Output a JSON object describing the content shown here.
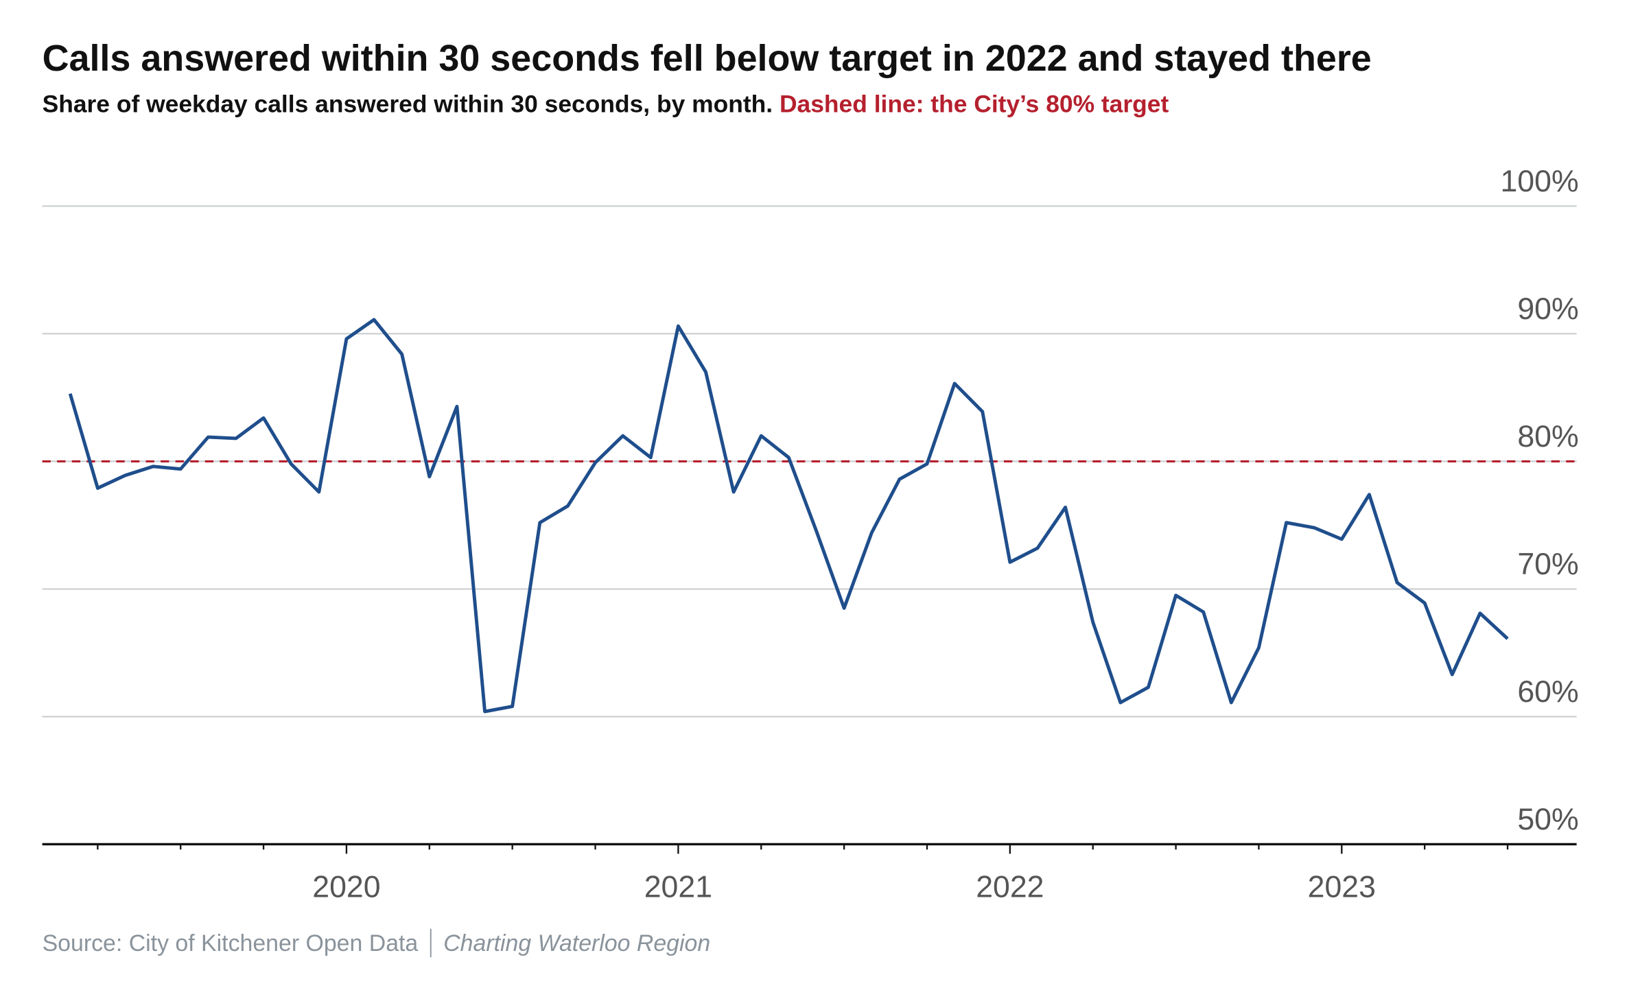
{
  "chart_data": {
    "type": "line",
    "title": "Calls answered within 30 seconds fell below target in 2022 and stayed there",
    "subtitle": "Share of weekday calls answered within 30 seconds, by month.",
    "subtitle_note": "Dashed line: the City’s 80% target",
    "source": "Source: City of Kitchener Open Data",
    "credit": "Charting Waterloo Region",
    "target": 80,
    "target_color": "#b5202e",
    "x": [
      2019.167,
      2019.25,
      2019.333,
      2019.417,
      2019.5,
      2019.583,
      2019.667,
      2019.75,
      2019.833,
      2019.917,
      2020,
      2020.083,
      2020.167,
      2020.25,
      2020.333,
      2020.417,
      2020.5,
      2020.583,
      2020.667,
      2020.75,
      2020.833,
      2020.917,
      2021,
      2021.083,
      2021.167,
      2021.25,
      2021.333,
      2021.417,
      2021.5,
      2021.583,
      2021.667,
      2021.75,
      2021.833,
      2021.917,
      2022,
      2022.083,
      2022.167,
      2022.25,
      2022.333,
      2022.417,
      2022.5,
      2022.583,
      2022.667,
      2022.75,
      2022.833,
      2022.917,
      2023,
      2023.083,
      2023.167,
      2023.25,
      2023.333,
      2023.417,
      2023.5
    ],
    "series": [
      {
        "color": "#1f4e8c",
        "values": [
          85.3,
          77.9,
          78.9,
          79.6,
          79.4,
          81.9,
          81.8,
          83.4,
          79.8,
          77.6,
          89.6,
          91.1,
          88.4,
          78.8,
          84.3,
          60.4,
          60.8,
          75.2,
          76.5,
          79.9,
          82.0,
          80.3,
          90.6,
          87.0,
          77.6,
          82.0,
          80.3,
          74.5,
          68.5,
          74.4,
          78.6,
          79.8,
          86.1,
          83.9,
          72.1,
          73.2,
          76.4,
          67.4,
          61.1,
          62.3,
          69.5,
          68.2,
          61.1,
          65.4,
          75.2,
          74.8,
          73.9,
          77.4,
          70.5,
          68.9,
          63.3,
          68.1,
          66.1
        ]
      }
    ],
    "xlim": [
      2019.083,
      2023.708
    ],
    "xticks": [
      2020,
      2021,
      2022,
      2023
    ],
    "x_minor_ticks": [
      2019.25,
      2019.5,
      2019.75,
      2020.25,
      2020.5,
      2020.75,
      2021.25,
      2021.5,
      2021.75,
      2022.25,
      2022.5,
      2022.75,
      2023.25,
      2023.5
    ],
    "ylim": [
      50,
      100
    ],
    "yticks": [
      {
        "value": 50,
        "label": "50%"
      },
      {
        "value": 60,
        "label": "60%"
      },
      {
        "value": 70,
        "label": "70%"
      },
      {
        "value": 80,
        "label": "80%"
      },
      {
        "value": 90,
        "label": "90%"
      },
      {
        "value": 100,
        "label": "100%"
      }
    ],
    "grid": true
  }
}
